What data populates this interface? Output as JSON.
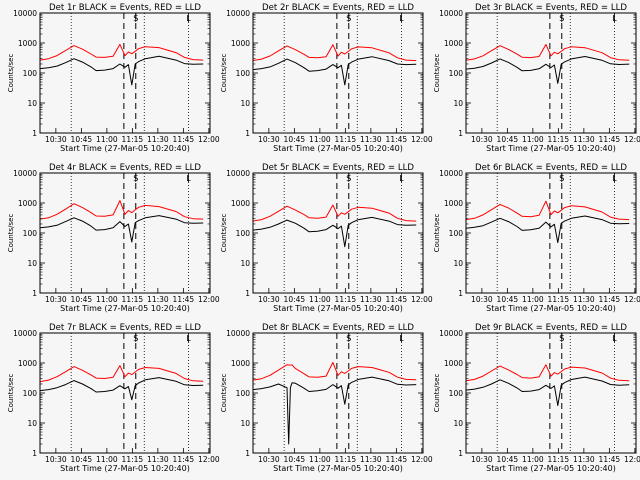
{
  "colors": {
    "background": "#f6f6f6",
    "axis": "#000000",
    "events_line": "#000000",
    "lld_line": "#ff0000",
    "marker_line": "#000000"
  },
  "common": {
    "ylabel": "Counts/sec",
    "xlabel": "Start Time (27-Mar-05 10:20:40)",
    "x_tick_labels": [
      "10:30",
      "10:45",
      "11:00",
      "11:15",
      "11:30",
      "11:45",
      "12:00"
    ],
    "y_tick_labels": [
      "1",
      "10",
      "100",
      "1000",
      "10000"
    ],
    "x_unit": "minutes after 10:20:40",
    "xlim": [
      0,
      100
    ],
    "ylim": [
      1,
      10000
    ],
    "y_scale": "log",
    "dotted_vertical_lines_at": [
      "10:39",
      "11:22",
      "11:48"
    ],
    "dashed_vertical_lines_at": [
      "11:10",
      "11:17"
    ],
    "top_markers": {
      "S": "11:17",
      "L": "11:48"
    }
  },
  "chart_data": [
    {
      "type": "line",
      "title": "Det 1r BLACK = Events, RED = LLD",
      "x": [
        0,
        5,
        10,
        15,
        20,
        25,
        30,
        33,
        38,
        43,
        47,
        50,
        52,
        54,
        56,
        58,
        62,
        70,
        80,
        85,
        90,
        96
      ],
      "series": [
        {
          "name": "Events",
          "color": "#000000",
          "values": [
            140,
            150,
            170,
            220,
            300,
            230,
            160,
            120,
            125,
            140,
            200,
            155,
            190,
            40,
            200,
            240,
            300,
            360,
            270,
            205,
            195,
            200
          ]
        },
        {
          "name": "LLD",
          "color": "#ff0000",
          "values": [
            270,
            300,
            380,
            560,
            820,
            620,
            430,
            340,
            330,
            360,
            900,
            380,
            500,
            440,
            530,
            650,
            750,
            700,
            480,
            330,
            280,
            270
          ]
        }
      ]
    },
    {
      "type": "line",
      "title": "Det 2r BLACK = Events, RED = LLD",
      "x": [
        0,
        5,
        10,
        15,
        20,
        25,
        30,
        33,
        38,
        43,
        47,
        50,
        52,
        54,
        56,
        58,
        62,
        70,
        80,
        85,
        90,
        96
      ],
      "series": [
        {
          "name": "Events",
          "color": "#000000",
          "values": [
            130,
            140,
            160,
            210,
            290,
            220,
            150,
            115,
            120,
            135,
            190,
            150,
            180,
            40,
            190,
            230,
            290,
            350,
            260,
            200,
            190,
            195
          ]
        },
        {
          "name": "LLD",
          "color": "#ff0000",
          "values": [
            260,
            290,
            370,
            550,
            800,
            600,
            420,
            330,
            320,
            350,
            880,
            370,
            490,
            430,
            520,
            640,
            740,
            690,
            470,
            320,
            270,
            260
          ]
        }
      ]
    },
    {
      "type": "line",
      "title": "Det 3r BLACK = Events, RED = LLD",
      "x": [
        0,
        5,
        10,
        15,
        20,
        25,
        30,
        33,
        38,
        43,
        47,
        50,
        52,
        54,
        56,
        58,
        62,
        70,
        80,
        85,
        90,
        96
      ],
      "series": [
        {
          "name": "Events",
          "color": "#000000",
          "values": [
            135,
            145,
            165,
            215,
            295,
            225,
            155,
            118,
            122,
            138,
            195,
            152,
            185,
            45,
            195,
            235,
            295,
            355,
            265,
            202,
            192,
            198
          ]
        },
        {
          "name": "LLD",
          "color": "#ff0000",
          "values": [
            265,
            295,
            375,
            555,
            810,
            610,
            425,
            335,
            325,
            355,
            890,
            375,
            495,
            435,
            525,
            645,
            745,
            695,
            475,
            325,
            275,
            265
          ]
        }
      ]
    },
    {
      "type": "line",
      "title": "Det 4r BLACK = Events, RED = LLD",
      "x": [
        0,
        5,
        10,
        15,
        20,
        25,
        30,
        33,
        38,
        43,
        47,
        50,
        52,
        54,
        56,
        58,
        62,
        70,
        80,
        85,
        90,
        96
      ],
      "series": [
        {
          "name": "Events",
          "color": "#000000",
          "values": [
            150,
            160,
            180,
            240,
            320,
            250,
            170,
            125,
            130,
            150,
            240,
            165,
            200,
            50,
            220,
            260,
            320,
            380,
            290,
            220,
            210,
            215
          ]
        },
        {
          "name": "LLD",
          "color": "#ff0000",
          "values": [
            290,
            320,
            420,
            620,
            950,
            700,
            480,
            370,
            360,
            400,
            1200,
            420,
            560,
            480,
            590,
            720,
            830,
            760,
            520,
            350,
            300,
            290
          ]
        }
      ]
    },
    {
      "type": "line",
      "title": "Det 5r BLACK = Events, RED = LLD",
      "x": [
        0,
        5,
        10,
        15,
        20,
        25,
        30,
        33,
        38,
        43,
        47,
        50,
        52,
        54,
        56,
        58,
        62,
        70,
        80,
        85,
        90,
        96
      ],
      "series": [
        {
          "name": "Events",
          "color": "#000000",
          "values": [
            125,
            135,
            155,
            200,
            270,
            210,
            145,
            110,
            115,
            130,
            180,
            140,
            170,
            35,
            180,
            220,
            280,
            330,
            250,
            190,
            180,
            185
          ]
        },
        {
          "name": "LLD",
          "color": "#ff0000",
          "values": [
            250,
            280,
            360,
            530,
            780,
            580,
            410,
            320,
            310,
            340,
            860,
            360,
            470,
            420,
            510,
            620,
            720,
            670,
            460,
            310,
            260,
            250
          ]
        }
      ]
    },
    {
      "type": "line",
      "title": "Det 6r BLACK = Events, RED = LLD",
      "x": [
        0,
        5,
        10,
        15,
        20,
        25,
        30,
        33,
        38,
        43,
        47,
        50,
        52,
        54,
        56,
        58,
        62,
        70,
        80,
        85,
        90,
        96
      ],
      "series": [
        {
          "name": "Events",
          "color": "#000000",
          "values": [
            145,
            155,
            175,
            230,
            310,
            240,
            165,
            122,
            128,
            145,
            230,
            160,
            195,
            48,
            210,
            250,
            310,
            370,
            280,
            212,
            202,
            208
          ]
        },
        {
          "name": "LLD",
          "color": "#ff0000",
          "values": [
            280,
            310,
            400,
            600,
            900,
            680,
            460,
            360,
            350,
            390,
            1150,
            410,
            540,
            470,
            570,
            700,
            810,
            740,
            500,
            340,
            290,
            280
          ]
        }
      ]
    },
    {
      "type": "line",
      "title": "Det 7r BLACK = Events, RED = LLD",
      "x": [
        0,
        5,
        10,
        15,
        20,
        25,
        30,
        33,
        38,
        43,
        47,
        50,
        52,
        54,
        56,
        58,
        62,
        70,
        80,
        85,
        90,
        96
      ],
      "series": [
        {
          "name": "Events",
          "color": "#000000",
          "values": [
            120,
            130,
            150,
            190,
            260,
            200,
            140,
            108,
            112,
            125,
            175,
            138,
            165,
            60,
            175,
            215,
            275,
            325,
            245,
            188,
            178,
            182
          ]
        },
        {
          "name": "LLD",
          "color": "#ff0000",
          "values": [
            240,
            270,
            350,
            510,
            760,
            570,
            400,
            315,
            305,
            335,
            820,
            350,
            460,
            410,
            500,
            610,
            710,
            660,
            450,
            305,
            255,
            245
          ]
        }
      ]
    },
    {
      "type": "line",
      "title": "Det 8r BLACK = Events, RED = LLD",
      "x": [
        0,
        5,
        10,
        15,
        20,
        21,
        22,
        23,
        25,
        30,
        33,
        38,
        43,
        47,
        50,
        52,
        54,
        56,
        58,
        62,
        70,
        80,
        85,
        90,
        96
      ],
      "series": [
        {
          "name": "Events",
          "color": "#000000",
          "values": [
            130,
            140,
            160,
            200,
            150,
            2,
            150,
            220,
            210,
            145,
            112,
            118,
            132,
            190,
            145,
            175,
            42,
            185,
            225,
            285,
            340,
            255,
            195,
            185,
            190
          ]
        },
        {
          "name": "LLD",
          "color": "#ff0000",
          "values": [
            270,
            300,
            390,
            580,
            880,
            860,
            860,
            860,
            650,
            440,
            345,
            335,
            365,
            1050,
            390,
            510,
            450,
            540,
            660,
            760,
            710,
            490,
            335,
            285,
            275
          ]
        }
      ]
    },
    {
      "type": "line",
      "title": "Det 9r BLACK = Events, RED = LLD",
      "x": [
        0,
        5,
        10,
        15,
        20,
        25,
        30,
        33,
        38,
        43,
        47,
        50,
        52,
        54,
        56,
        58,
        62,
        70,
        80,
        85,
        90,
        96
      ],
      "series": [
        {
          "name": "Events",
          "color": "#000000",
          "values": [
            125,
            135,
            155,
            200,
            275,
            210,
            148,
            112,
            116,
            130,
            180,
            142,
            172,
            38,
            182,
            222,
            282,
            338,
            252,
            192,
            182,
            188
          ]
        },
        {
          "name": "LLD",
          "color": "#ff0000",
          "values": [
            255,
            285,
            365,
            540,
            790,
            590,
            415,
            325,
            315,
            345,
            870,
            365,
            480,
            425,
            515,
            630,
            730,
            680,
            465,
            315,
            265,
            255
          ]
        }
      ]
    }
  ]
}
